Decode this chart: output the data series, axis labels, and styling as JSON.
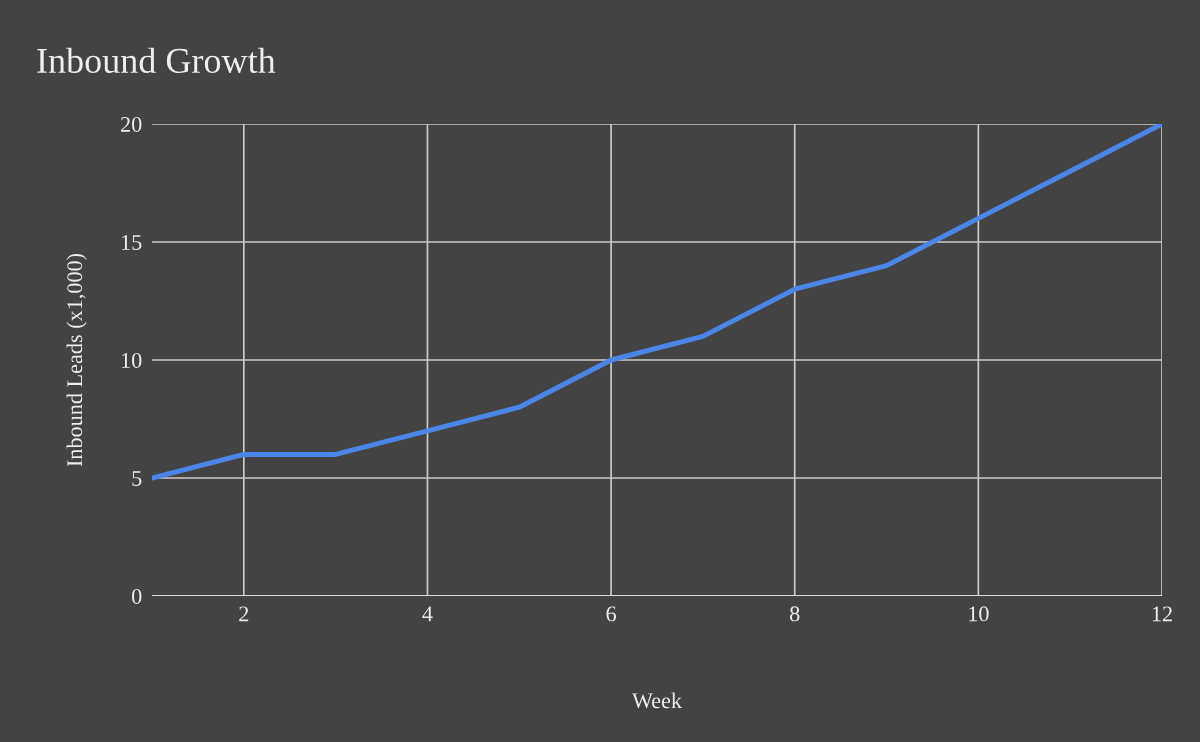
{
  "chart_data": {
    "type": "line",
    "title": "Inbound Growth",
    "xlabel": "Week",
    "ylabel": "Inbound Leads (x1,000)",
    "x": [
      1,
      2,
      3,
      4,
      5,
      6,
      7,
      8,
      9,
      10,
      11,
      12
    ],
    "series": [
      {
        "color": "#4a86e8",
        "values": [
          5,
          6,
          6,
          7,
          8,
          10,
          11,
          13,
          14,
          16,
          18,
          20
        ]
      }
    ],
    "xlim": [
      1,
      12
    ],
    "xticks": [
      2,
      4,
      6,
      8,
      10,
      12
    ],
    "ylim": [
      0,
      20
    ],
    "yticks": [
      0,
      5,
      10,
      15,
      20
    ],
    "grid": true,
    "legend": false,
    "marker": "none",
    "line_style": "solid"
  }
}
